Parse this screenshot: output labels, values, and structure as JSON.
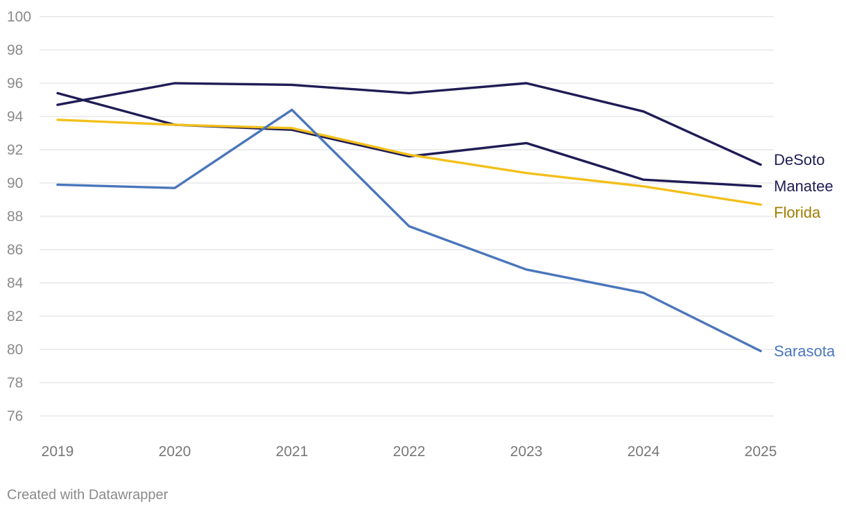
{
  "chart_data": {
    "type": "line",
    "x": [
      "2019",
      "2020",
      "2021",
      "2022",
      "2023",
      "2024",
      "2025"
    ],
    "ylim": [
      76,
      100
    ],
    "yticks": [
      76,
      78,
      80,
      82,
      84,
      86,
      88,
      90,
      92,
      94,
      96,
      98,
      100
    ],
    "grid": true,
    "legend": "direct labels at right end of lines",
    "series": [
      {
        "name": "DeSoto",
        "color": "#1f1c55",
        "label_color": "#1f1c55",
        "values": [
          94.7,
          96.0,
          95.9,
          95.4,
          96.0,
          94.3,
          91.1
        ]
      },
      {
        "name": "Manatee",
        "color": "#1f1c55",
        "label_color": "#1f1c55",
        "values": [
          95.4,
          93.5,
          93.2,
          91.6,
          92.4,
          90.2,
          89.8
        ]
      },
      {
        "name": "Florida",
        "color": "#f3c01c",
        "label_color": "#a07d00",
        "values": [
          93.8,
          93.5,
          93.3,
          91.7,
          90.6,
          89.8,
          88.7
        ]
      },
      {
        "name": "Sarasota",
        "color": "#4a76bb",
        "label_color": "#4a76bb",
        "values": [
          89.9,
          89.7,
          94.4,
          87.4,
          84.8,
          83.4,
          79.9
        ]
      }
    ]
  },
  "footer": {
    "credit": "Created with Datawrapper"
  }
}
